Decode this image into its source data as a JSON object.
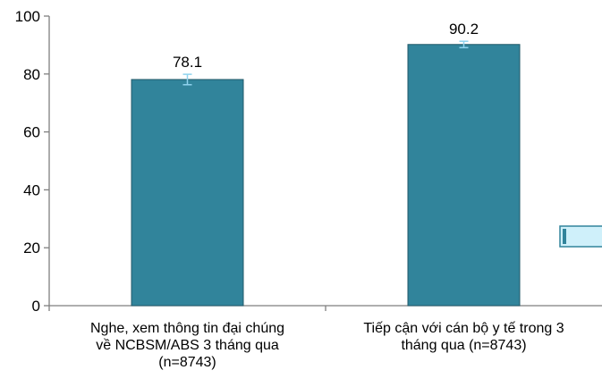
{
  "chart_data": {
    "type": "bar",
    "categories": [
      [
        "Nghe, xem thông tin đại chúng",
        "về NCBSM/ABS 3 tháng qua",
        "(n=8743)"
      ],
      [
        "Tiếp cận với cán bộ y tế trong 3",
        "tháng qua (n=8743)"
      ]
    ],
    "values": [
      78.1,
      90.2
    ],
    "data_labels": [
      "78.1",
      "90.2"
    ],
    "error_bars": [
      {
        "low": 76.3,
        "high": 79.9
      },
      {
        "low": 89.1,
        "high": 91.3
      }
    ],
    "ylim": [
      0,
      100
    ],
    "yticks": [
      0,
      20,
      40,
      60,
      80,
      100
    ],
    "ytick_labels": [
      "0",
      "20",
      "40",
      "60",
      "80",
      "100"
    ],
    "grid": false,
    "legend": "none",
    "colors": {
      "bar": "#31849b",
      "bar_edge": "#215968",
      "error_bar": "#8fd3ee",
      "axis": "#7f7f7f",
      "callout_fill": "#cff0fa",
      "callout_stripe": "#31849b"
    }
  }
}
